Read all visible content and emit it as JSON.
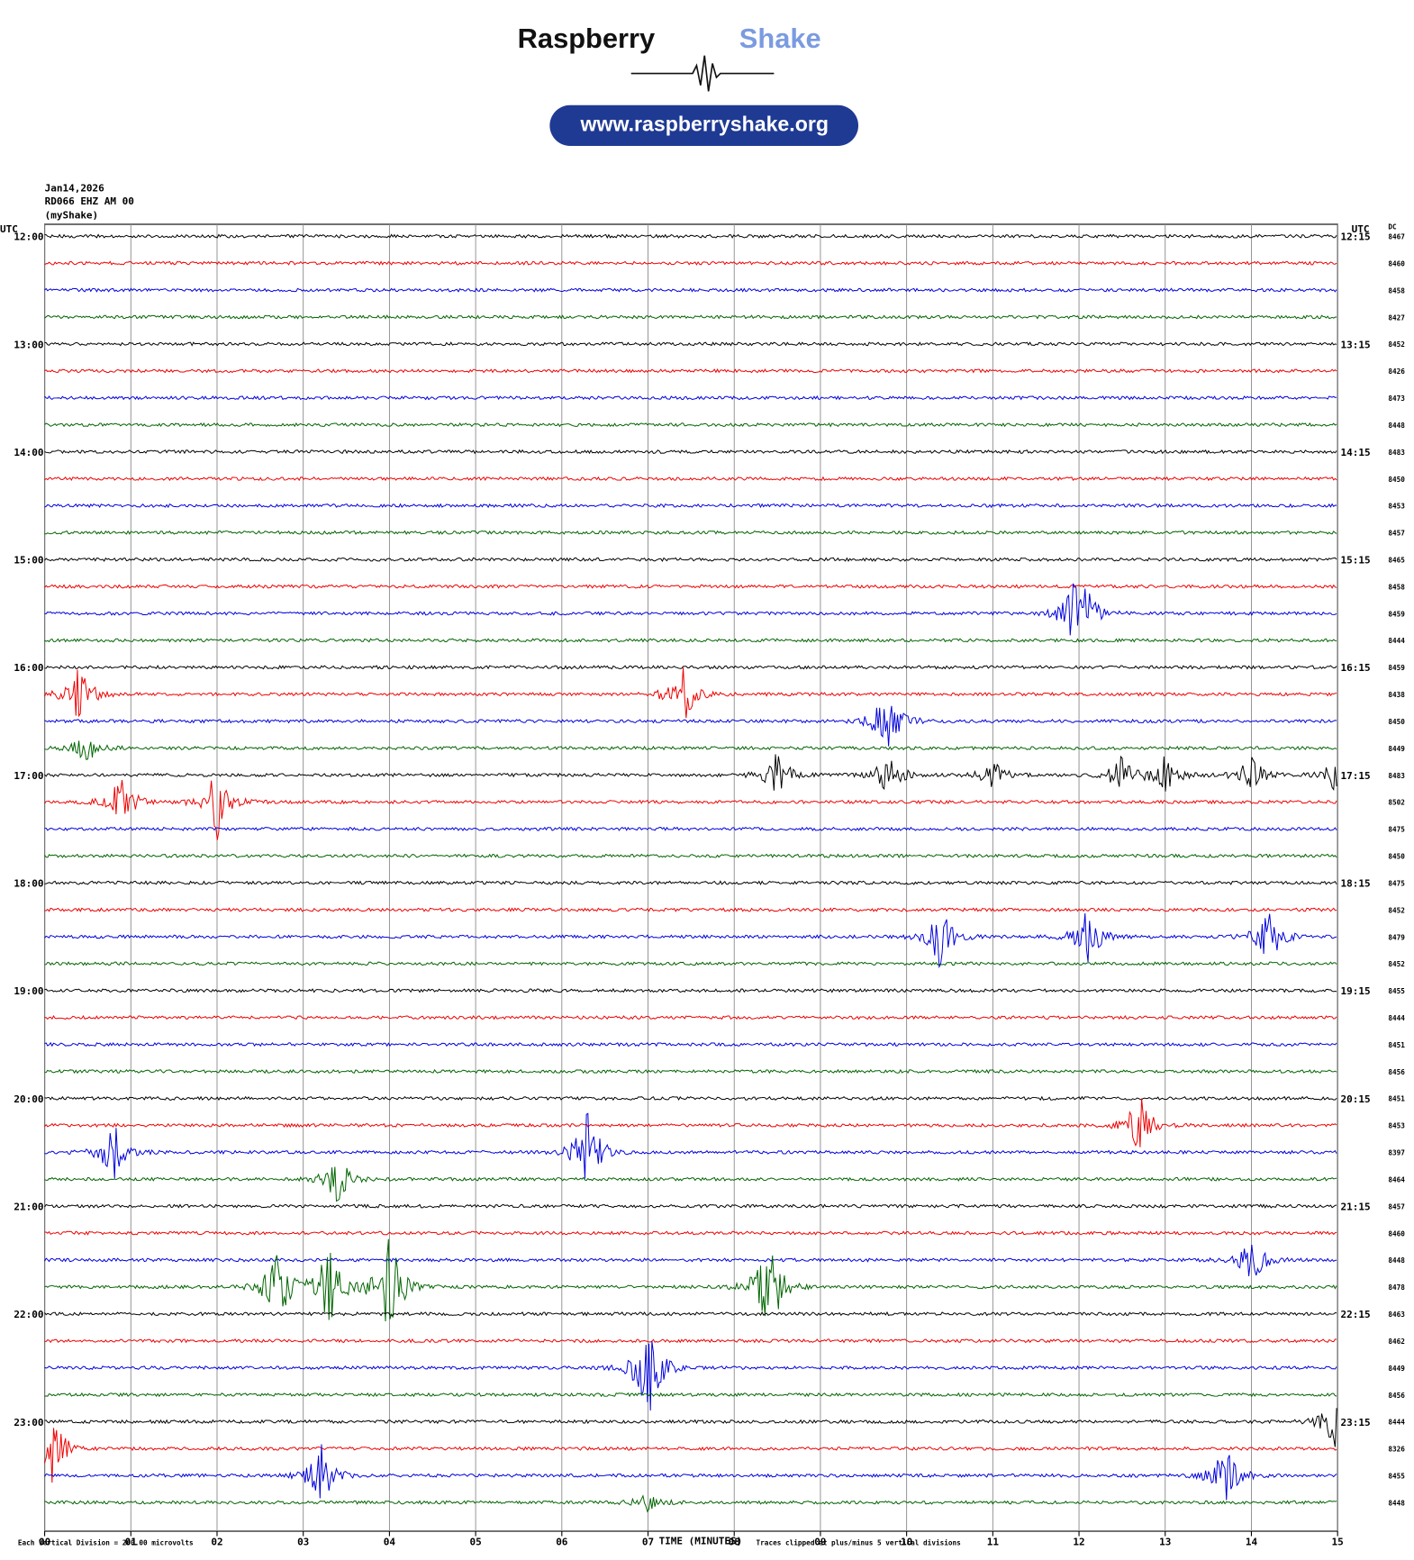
{
  "header": {
    "brand_dark": "Raspberry",
    "brand_light": "Shake",
    "url": "www.raspberryshake.org"
  },
  "info": [
    "Jan14,2026",
    "RD066 EHZ AM 00",
    "(myShake)"
  ],
  "left_axis": {
    "label": "UTC",
    "hours": [
      "12:00",
      "13:00",
      "14:00",
      "15:00",
      "16:00",
      "17:00",
      "18:00",
      "19:00",
      "20:00",
      "21:00",
      "22:00",
      "23:00"
    ]
  },
  "right_axis": {
    "label": "UTC",
    "times": [
      "12:15",
      "13:15",
      "14:15",
      "15:15",
      "16:15",
      "17:15",
      "18:15",
      "19:15",
      "20:15",
      "21:15",
      "22:15",
      "23:15"
    ]
  },
  "dc": {
    "label": "DC",
    "values": [
      8467,
      8460,
      8458,
      8427,
      8452,
      8426,
      8473,
      8448,
      8483,
      8450,
      8453,
      8457,
      8465,
      8458,
      8459,
      8444,
      8459,
      8438,
      8450,
      8449,
      8483,
      8502,
      8475,
      8450,
      8475,
      8452,
      8479,
      8452,
      8455,
      8444,
      8451,
      8456,
      8451,
      8453,
      8397,
      8464,
      8457,
      8460,
      8448,
      8478,
      8463,
      8462,
      8449,
      8456,
      8444,
      8326,
      8455,
      8448
    ]
  },
  "x_axis": {
    "label": "TIME (MINUTES)",
    "ticks": [
      "00",
      "01",
      "02",
      "03",
      "04",
      "05",
      "06",
      "07",
      "08",
      "09",
      "10",
      "11",
      "12",
      "13",
      "14",
      "15"
    ]
  },
  "footer": {
    "division": "Each Vertical Division =  200.00 microvolts",
    "clip": "Traces clipped at plus/minus 5 vertical divisions"
  }
}
